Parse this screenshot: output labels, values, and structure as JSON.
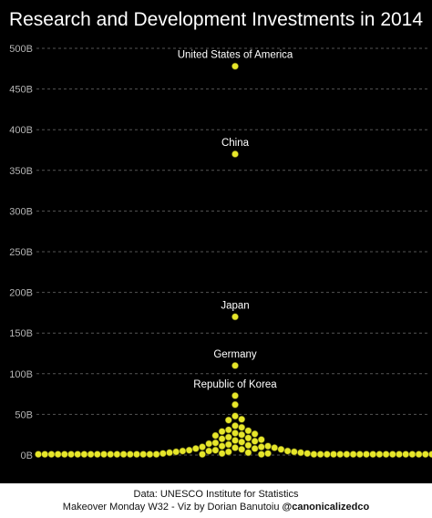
{
  "title": "Research and Development Investments in 2014",
  "footer": {
    "source": "Data: UNESCO Institute for Statistics",
    "credit_prefix": "Makeover Monday W32 - Viz by Dorian Banutoiu ",
    "credit_handle": "@canonicalizedco"
  },
  "colors": {
    "background": "#000000",
    "dot": "#e6e62a",
    "dot_outline": "#5a5a10",
    "grid": "#555555",
    "text": "#ffffff",
    "axis_text": "#b4b4b4"
  },
  "chart_data": {
    "type": "scatter",
    "title": "Research and Development Investments in 2014",
    "xlabel": "",
    "ylabel": "",
    "ylim": [
      0,
      500
    ],
    "y_unit": "B",
    "y_ticks": [
      "0B",
      "50B",
      "100B",
      "150B",
      "200B",
      "250B",
      "300B",
      "350B",
      "400B",
      "450B",
      "500B"
    ],
    "grid": true,
    "labeled_points": [
      {
        "label": "United States of America",
        "value": 478
      },
      {
        "label": "China",
        "value": 370
      },
      {
        "label": "Japan",
        "value": 170
      },
      {
        "label": "Germany",
        "value": 110
      },
      {
        "label": "Republic of Korea",
        "value": 73
      }
    ],
    "other_values": [
      62,
      48,
      44,
      43,
      36,
      34,
      31,
      30,
      29,
      27,
      26,
      25,
      24,
      22,
      21,
      20,
      19,
      18,
      17,
      16,
      15,
      14,
      13,
      12,
      11,
      11,
      10,
      10,
      9,
      9,
      8,
      8,
      7,
      7,
      6,
      6,
      5,
      5,
      5,
      4,
      4,
      4,
      3,
      3,
      3,
      2,
      2,
      2,
      2,
      1,
      1,
      1,
      1,
      1,
      1,
      1,
      1,
      1,
      1,
      1,
      1,
      1,
      1,
      1,
      1,
      1,
      1,
      1,
      1,
      1,
      1,
      1,
      1,
      1,
      1,
      1,
      1,
      1,
      1,
      1,
      1,
      1,
      1,
      1,
      1,
      1,
      1,
      1,
      1,
      1
    ]
  }
}
